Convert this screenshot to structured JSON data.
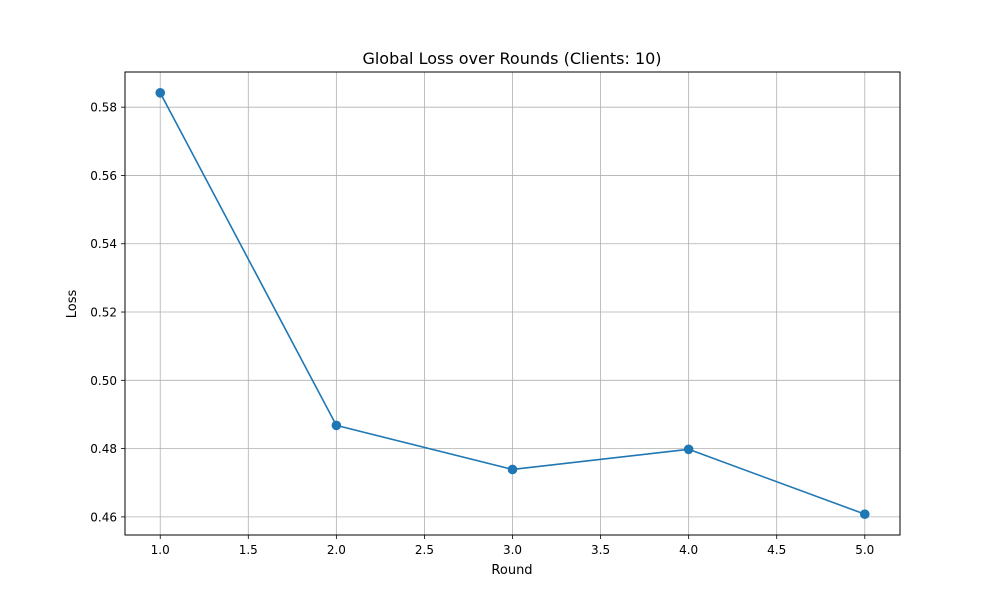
{
  "chart_data": {
    "type": "line",
    "title": "Global Loss over Rounds (Clients: 10)",
    "xlabel": "Round",
    "ylabel": "Loss",
    "x": [
      1,
      2,
      3,
      4,
      5
    ],
    "series": [
      {
        "name": "Global Loss",
        "values": [
          0.5842,
          0.4868,
          0.4739,
          0.4798,
          0.4608
        ],
        "color": "#1f77b4",
        "marker": "circle"
      }
    ],
    "xlim": [
      0.8,
      5.2
    ],
    "ylim": [
      0.4547,
      0.5903
    ],
    "xticks": [
      {
        "value": 1.0,
        "label": "1.0"
      },
      {
        "value": 1.5,
        "label": "1.5"
      },
      {
        "value": 2.0,
        "label": "2.0"
      },
      {
        "value": 2.5,
        "label": "2.5"
      },
      {
        "value": 3.0,
        "label": "3.0"
      },
      {
        "value": 3.5,
        "label": "3.5"
      },
      {
        "value": 4.0,
        "label": "4.0"
      },
      {
        "value": 4.5,
        "label": "4.5"
      },
      {
        "value": 5.0,
        "label": "5.0"
      }
    ],
    "yticks": [
      {
        "value": 0.46,
        "label": "0.46"
      },
      {
        "value": 0.48,
        "label": "0.48"
      },
      {
        "value": 0.5,
        "label": "0.50"
      },
      {
        "value": 0.52,
        "label": "0.52"
      },
      {
        "value": 0.54,
        "label": "0.54"
      },
      {
        "value": 0.56,
        "label": "0.56"
      },
      {
        "value": 0.58,
        "label": "0.58"
      }
    ],
    "grid": true,
    "grid_color": "#b0b0b0",
    "axes_color": "#000000",
    "legend": "none"
  }
}
